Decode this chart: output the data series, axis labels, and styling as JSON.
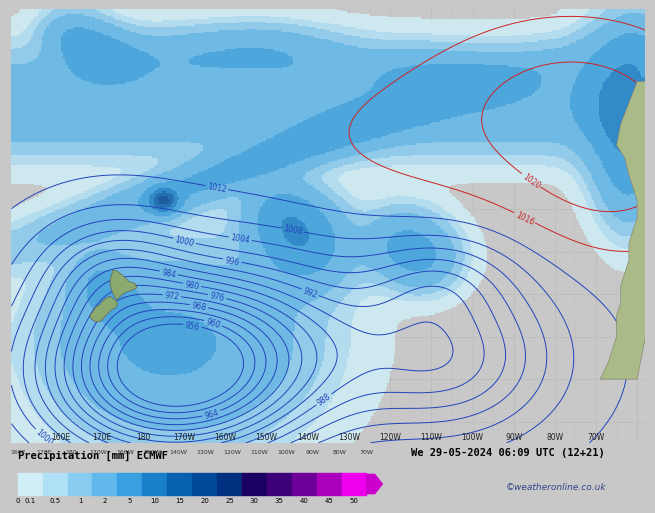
{
  "title_left": "Precipitation [mm] ECMWF",
  "title_right": "We 29-05-2024 06:09 UTC (12+21)",
  "credit": "©weatheronline.co.uk",
  "colorbar_values": [
    0.1,
    0.5,
    1,
    2,
    5,
    10,
    15,
    20,
    25,
    30,
    35,
    40,
    45,
    50
  ],
  "colorbar_colors": [
    "#d4f0fc",
    "#b8e8f8",
    "#90d8f4",
    "#60c8f0",
    "#38b8ec",
    "#18a0e0",
    "#0878c0",
    "#0050a0",
    "#002880",
    "#200050",
    "#480070",
    "#780098",
    "#b800b8",
    "#f000f0"
  ],
  "map_bg": "#e8e8e8",
  "grid_color": "#aaaaaa",
  "land_color_nz": "#8aaa70",
  "land_color_sa": "#aabb88",
  "isobar_blue": "#2244bb",
  "isobar_red": "#cc2222",
  "precip_light": "#b8ddf8",
  "precip_mid": "#80c0f0",
  "precip_heavy": "#4090d8",
  "font_size_title": 7.5,
  "colorbar_label_size": 6.0,
  "lon_labels": [
    "160E",
    "170E",
    "180",
    "170W",
    "160W",
    "150W",
    "140W",
    "130W",
    "120W",
    "110W",
    "100W",
    "90W",
    "80W",
    "70W"
  ],
  "lon_vals": [
    160,
    170,
    180,
    190,
    200,
    210,
    220,
    230,
    240,
    250,
    260,
    270,
    280,
    290
  ]
}
